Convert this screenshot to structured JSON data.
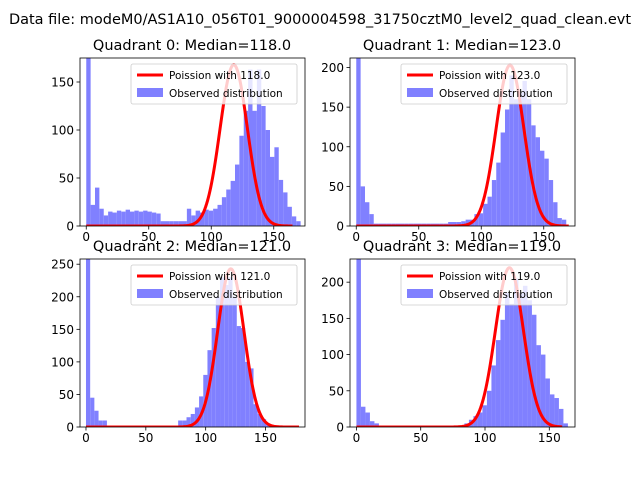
{
  "figure": {
    "suptitle": "Data file: modeM0/AS1A10_056T01_9000004598_31750cztM0_level2_quad_clean.evt"
  },
  "colors": {
    "histogram": "#8080ff",
    "poisson": "#ff0000",
    "axis": "#000000",
    "background": "#ffffff"
  },
  "chart_data": [
    {
      "type": "bar",
      "title": "Quadrant 0: Median=118.0",
      "xlim": [
        -5,
        175
      ],
      "ylim": [
        0,
        175
      ],
      "xticks": [
        0,
        50,
        100,
        150
      ],
      "yticks": [
        0,
        50,
        100,
        150
      ],
      "bin_width": 3.5,
      "bin_start": 0,
      "counts": [
        175,
        22,
        40,
        18,
        11,
        15,
        14,
        16,
        15,
        17,
        15,
        16,
        15,
        16,
        15,
        14,
        13,
        5,
        5,
        5,
        5,
        5,
        5,
        18,
        11,
        16,
        14,
        17,
        16,
        18,
        22,
        30,
        38,
        47,
        64,
        94,
        120,
        163,
        120,
        163,
        125,
        100,
        72,
        82,
        48,
        35,
        20,
        10,
        5
      ],
      "poisson": {
        "mu": 118.0,
        "peak": 168,
        "sigma": 10.9,
        "x_min": 0,
        "x_max": 165
      },
      "legend": {
        "position": "upper-right",
        "line_label": "Poission with 118.0",
        "patch_label": "Observed distribution"
      }
    },
    {
      "type": "bar",
      "title": "Quadrant 1: Median=123.0",
      "xlim": [
        -5,
        175
      ],
      "ylim": [
        0,
        212
      ],
      "xticks": [
        0,
        50,
        100,
        150
      ],
      "yticks": [
        0,
        50,
        100,
        150,
        200
      ],
      "bin_width": 3.5,
      "bin_start": 0,
      "counts": [
        212,
        50,
        30,
        15,
        3,
        3,
        3,
        3,
        3,
        3,
        3,
        3,
        3,
        3,
        3,
        3,
        3,
        3,
        3,
        3,
        3,
        5,
        5,
        5,
        6,
        8,
        8,
        15,
        16,
        28,
        37,
        58,
        80,
        118,
        147,
        190,
        160,
        168,
        183,
        160,
        127,
        112,
        95,
        85,
        58,
        30,
        10,
        8,
        0
      ],
      "poisson": {
        "mu": 123.0,
        "peak": 203,
        "sigma": 11.1,
        "x_min": 0,
        "x_max": 170
      },
      "legend": {
        "position": "upper-right",
        "line_label": "Poission with 123.0",
        "patch_label": "Observed distribution"
      }
    },
    {
      "type": "bar",
      "title": "Quadrant 2: Median=121.0",
      "xlim": [
        -5,
        183
      ],
      "ylim": [
        0,
        258
      ],
      "xticks": [
        0,
        50,
        100,
        150
      ],
      "yticks": [
        0,
        50,
        100,
        150,
        200,
        250
      ],
      "bin_width": 3.5,
      "bin_start": 0,
      "counts": [
        258,
        45,
        25,
        10,
        10,
        0,
        0,
        0,
        0,
        0,
        0,
        0,
        0,
        0,
        0,
        0,
        0,
        0,
        0,
        0,
        0,
        0,
        10,
        10,
        15,
        20,
        30,
        47,
        80,
        118,
        152,
        200,
        230,
        218,
        230,
        200,
        155,
        152,
        100,
        90,
        35,
        20,
        12,
        5,
        3,
        0
      ],
      "poisson": {
        "mu": 121.0,
        "peak": 243,
        "sigma": 11.0,
        "x_min": 0,
        "x_max": 178
      },
      "legend": {
        "position": "upper-right",
        "line_label": "Poission with 121.0",
        "patch_label": "Observed distribution"
      }
    },
    {
      "type": "bar",
      "title": "Quadrant 3: Median=119.0",
      "xlim": [
        -5,
        170
      ],
      "ylim": [
        0,
        232
      ],
      "xticks": [
        0,
        50,
        100,
        150
      ],
      "yticks": [
        0,
        50,
        100,
        150,
        200
      ],
      "bin_width": 3.5,
      "bin_start": 0,
      "counts": [
        232,
        28,
        20,
        8,
        5,
        0,
        0,
        0,
        0,
        0,
        0,
        0,
        0,
        0,
        0,
        0,
        0,
        0,
        0,
        0,
        0,
        0,
        0,
        0,
        5,
        10,
        15,
        20,
        30,
        50,
        85,
        120,
        148,
        185,
        170,
        205,
        185,
        195,
        175,
        155,
        113,
        100,
        67,
        45,
        40,
        25,
        5
      ],
      "poisson": {
        "mu": 119.0,
        "peak": 220,
        "sigma": 10.9,
        "x_min": 0,
        "x_max": 160
      },
      "legend": {
        "position": "upper-right",
        "line_label": "Poission with 119.0",
        "patch_label": "Observed distribution"
      }
    }
  ]
}
